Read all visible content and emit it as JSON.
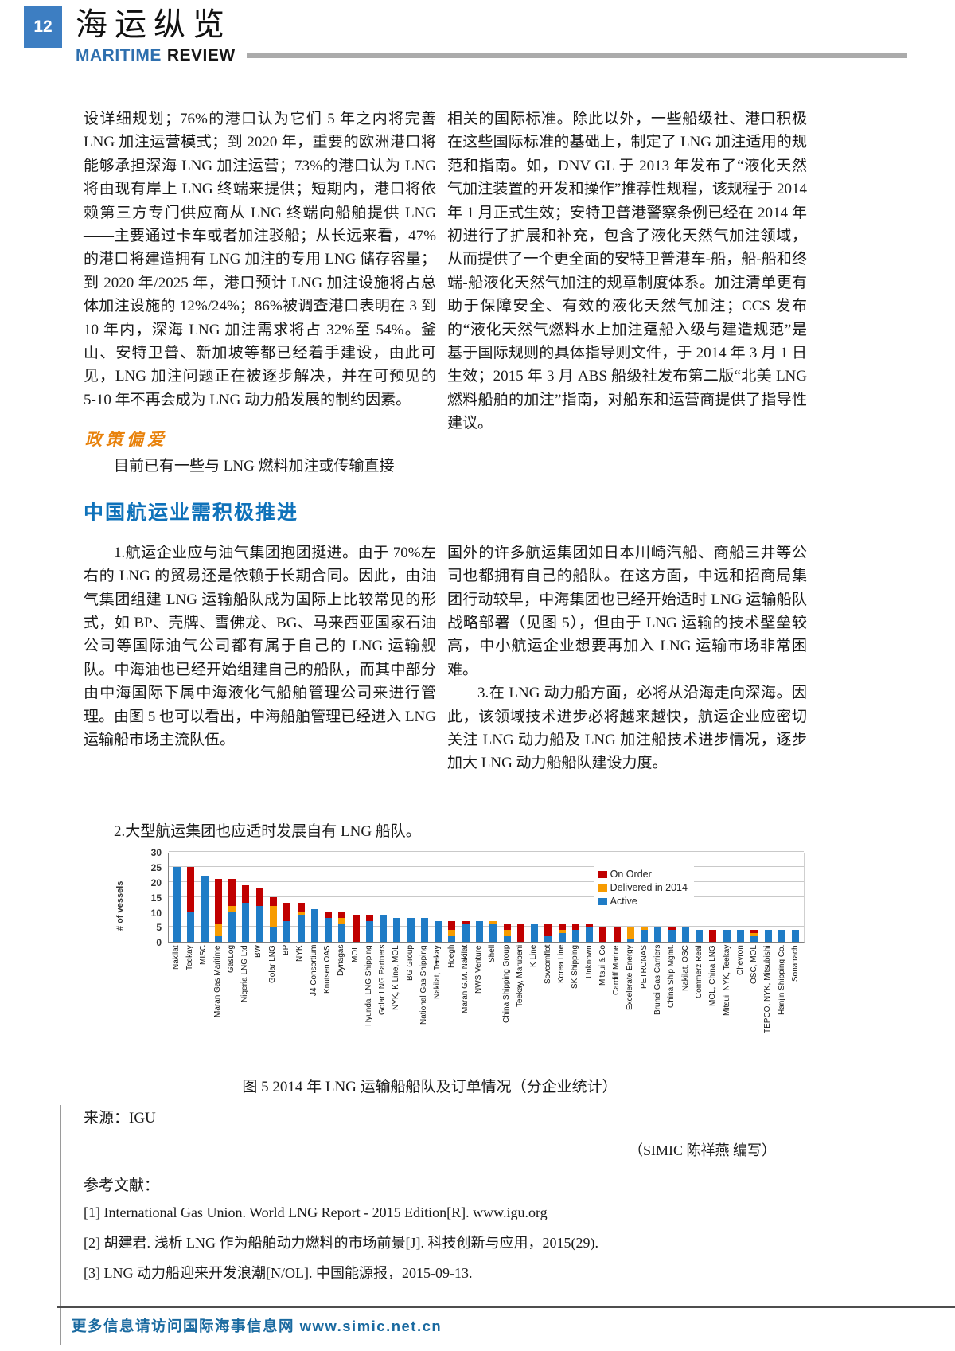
{
  "header": {
    "page_number": "12",
    "title_zh": "海运纵览",
    "title_en_1": "MARITIME",
    "title_en_2": "REVIEW"
  },
  "section1": {
    "left_para": "设详细规划；76%的港口认为它们 5 年之内将完善 LNG 加注运营模式；到 2020 年，重要的欧洲港口将能够承担深海 LNG 加注运营；73%的港口认为 LNG 将由现有岸上 LNG 终端来提供；短期内，港口将依赖第三方专门供应商从 LNG 终端向船舶提供 LNG——主要通过卡车或者加注驳船；从长远来看，47%的港口将建造拥有 LNG 加注的专用 LNG 储存容量；到 2020 年/2025 年，港口预计 LNG 加注设施将占总体加注设施的 12%/24%；86%被调查港口表明在 3 到 10 年内，深海 LNG 加注需求将占 32%至 54%。釜山、安特卫普、新加坡等都已经着手建设，由此可见，LNG 加注问题正在被逐步解决，并在可预见的 5-10 年不再会成为 LNG 动力船发展的制约因素。",
    "policy_heading": "政策偏爱",
    "policy_para": "目前已有一些与 LNG 燃料加注或传输直接",
    "right_para": "相关的国际标准。除此以外，一些船级社、港口积极在这些国际标准的基础上，制定了 LNG 加注适用的规范和指南。如，DNV GL 于 2013 年发布了“液化天然气加注装置的开发和操作”推荐性规程，该规程于 2014 年 1 月正式生效；安特卫普港警察条例已经在 2014 年初进行了扩展和补充，包含了液化天然气加注领域，从而提供了一个更全面的安特卫普港车-船，船-船和终端-船液化天然气加注的规章制度体系。加注清单更有助于保障安全、有效的液化天然气加注；CCS 发布的“液化天然气燃料水上加注趸船入级与建造规范”是基于国际规则的具体指导则文件，于 2014 年 3 月 1 日生效；2015 年 3 月 ABS 船级社发布第二版“北美 LNG 燃料船舶的加注”指南，对船东和运营商提供了指导性建议。"
  },
  "section2": {
    "heading": "中国航运业需积极推进",
    "left_para": "1.航运企业应与油气集团抱团挺进。由于 70%左右的 LNG 的贸易还是依赖于长期合同。因此，由油气集团组建 LNG 运输船队成为国际上比较常见的形式，如 BP、壳牌、雪佛龙、BG、马来西亚国家石油公司等国际油气公司都有属于自己的 LNG 运输舰队。中海油也已经开始组建自己的船队，而其中部分由中海国际下属中海液化气船舶管理公司来进行管理。由图 5 也可以看出，中海船舶管理已经进入 LNG 运输船市场主流队伍。",
    "left_para2": "2.大型航运集团也应适时发展自有 LNG 船队。",
    "right_para": "国外的许多航运集团如日本川崎汽船、商船三井等公司也都拥有自己的船队。在这方面，中远和招商局集团行动较早，中海集团也已经开始适时 LNG 运输船队战略部署（见图 5），但由于 LNG 运输的技术壁垒较高，中小航运企业想要再加入 LNG 运输市场非常困难。",
    "right_para2": "3.在 LNG 动力船方面，必将从沿海走向深海。因此，该领域技术进步必将越来越快，航运企业应密切关注 LNG 动力船及 LNG 加注船技术进步情况，逐步加大 LNG 动力船船队建设力度。"
  },
  "chart_data": {
    "type": "bar",
    "stacked": true,
    "title": "",
    "xlabel": "",
    "ylabel": "# of vessels",
    "ylim": [
      0,
      30
    ],
    "yticks": [
      0,
      5,
      10,
      15,
      20,
      25,
      30
    ],
    "grid": true,
    "legend_position": "inside-top-right",
    "legend": [
      {
        "name": "On Order",
        "color": "#c00000"
      },
      {
        "name": "Delivered in 2014",
        "color": "#f79b00"
      },
      {
        "name": "Active",
        "color": "#1f7cc6"
      }
    ],
    "categories": [
      "Nakilat",
      "Teekay",
      "MISC",
      "Maran Gas Maritime",
      "GasLog",
      "Nigeria LNG Ltd",
      "BW",
      "Golar LNG",
      "BP",
      "NYK",
      "J4 Consortium",
      "Knutsen OAS",
      "Dynagas",
      "MOL",
      "Hyundai LNG Shipping",
      "Golar LNG Partners",
      "NYK, K Line, MOL",
      "BG Group",
      "National Gas Shipping",
      "Nakilat, Teekay",
      "Hoegh",
      "Maran G.M. Nakilat",
      "NWS Venture",
      "Shell",
      "China Shipping Group",
      "Teekay, Marubeni",
      "K Line",
      "Sovcomflot",
      "Korea Line",
      "SK Shipping",
      "Unknown",
      "Mitsui & Co",
      "Cardiff Marine",
      "Excelerate Energy",
      "PETRONAS",
      "Brunei Gas Carriers",
      "China Ship Mgmt.",
      "Nakilat, OSC",
      "Commerz Real",
      "MOL, China LNG",
      "Mitsui, NYK, Teekay",
      "Chevron",
      "OSC, MOL",
      "TEPCO, NYK, Mitsubishi",
      "Hanjin Shipping Co.",
      "Sonatrach"
    ],
    "series": [
      {
        "name": "Active",
        "color": "#1f7cc6",
        "values": [
          25,
          10,
          22,
          2,
          10,
          13,
          12,
          5,
          7,
          9,
          11,
          8,
          6,
          0,
          7,
          9,
          8,
          8,
          8,
          7,
          2,
          6,
          7,
          6,
          2,
          0,
          6,
          2,
          3,
          4,
          5,
          0,
          0,
          1,
          4,
          5,
          4,
          5,
          4,
          0,
          4,
          4,
          2,
          4,
          4,
          4
        ]
      },
      {
        "name": "Delivered in 2014",
        "color": "#f79b00",
        "values": [
          0,
          0,
          0,
          4,
          2,
          0,
          0,
          7,
          0,
          1,
          0,
          0,
          2,
          0,
          0,
          0,
          0,
          0,
          0,
          0,
          2,
          0,
          0,
          1,
          2,
          0,
          0,
          0,
          1,
          0,
          0,
          0,
          0,
          4,
          1,
          0,
          0,
          0,
          0,
          0,
          0,
          0,
          1,
          0,
          0,
          0
        ]
      },
      {
        "name": "On Order",
        "color": "#c00000",
        "values": [
          0,
          15,
          0,
          15,
          9,
          6,
          6,
          3,
          6,
          3,
          0,
          2,
          2,
          9,
          2,
          0,
          0,
          0,
          0,
          0,
          3,
          1,
          0,
          0,
          2,
          6,
          0,
          4,
          2,
          2,
          1,
          5,
          5,
          0,
          0,
          0,
          1,
          0,
          0,
          4,
          0,
          0,
          1,
          0,
          0,
          0
        ]
      }
    ]
  },
  "figure": {
    "caption": "图 5 2014 年 LNG 运输船船队及订单情况（分企业统计）",
    "source": "来源：IGU",
    "credit": "（SIMIC 陈祥燕 编写）"
  },
  "references": {
    "heading": "参考文献：",
    "items": [
      "[1] International Gas Union. World LNG Report - 2015 Edition[R]. www.igu.org",
      "[2] 胡建君. 浅析 LNG 作为船舶动力燃料的市场前景[J]. 科技创新与应用，2015(29).",
      "[3] LNG 动力船迎来开发浪潮[N/OL]. 中国能源报，2015-09-13."
    ]
  },
  "footer": {
    "text": "更多信息请访问国际海事信息网 www.simic.net.cn"
  }
}
